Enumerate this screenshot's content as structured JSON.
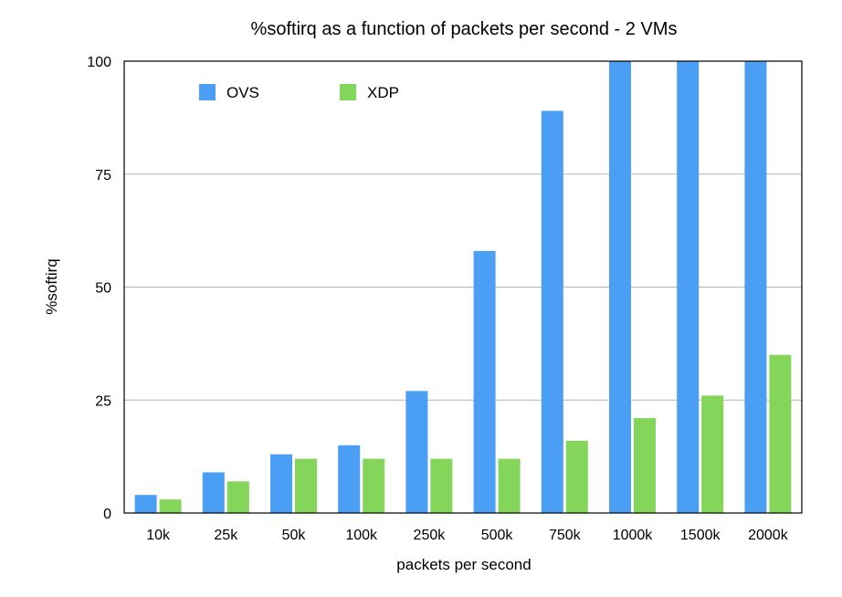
{
  "chart_data": {
    "type": "bar",
    "title": "%softirq as a function of packets per second - 2 VMs",
    "xlabel": "packets per second",
    "ylabel": "%softirq",
    "categories": [
      "10k",
      "25k",
      "50k",
      "100k",
      "250k",
      "500k",
      "750k",
      "1000k",
      "1500k",
      "2000k"
    ],
    "series": [
      {
        "name": "OVS",
        "color": "#4a9ff5",
        "values": [
          4,
          9,
          13,
          15,
          27,
          58,
          89,
          100,
          100,
          100
        ]
      },
      {
        "name": "XDP",
        "color": "#84d65a",
        "values": [
          3,
          7,
          12,
          12,
          12,
          12,
          16,
          21,
          26,
          35
        ]
      }
    ],
    "ylim": [
      0,
      100
    ],
    "yticks": [
      0,
      25,
      50,
      75,
      100
    ],
    "grid": true,
    "legend": "top-left"
  }
}
